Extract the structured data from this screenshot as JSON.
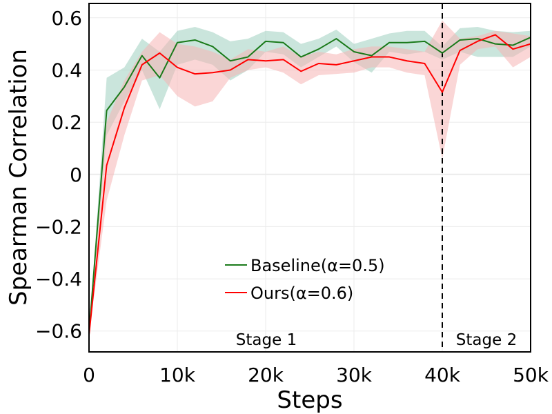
{
  "chart_data": {
    "type": "line",
    "title": "",
    "xlabel": "Steps",
    "ylabel": "Spearman Correlation",
    "xlim": [
      0,
      50000
    ],
    "ylim": [
      -0.68,
      0.655
    ],
    "grid": true,
    "legend_position": "center-bottom",
    "x_ticks": [
      {
        "value": 0,
        "label": "0"
      },
      {
        "value": 10000,
        "label": "10k"
      },
      {
        "value": 20000,
        "label": "20k"
      },
      {
        "value": 30000,
        "label": "30k"
      },
      {
        "value": 40000,
        "label": "40k"
      },
      {
        "value": 50000,
        "label": "50k"
      }
    ],
    "y_ticks": [
      {
        "value": -0.6,
        "label": "−0.6"
      },
      {
        "value": -0.4,
        "label": "−0.4"
      },
      {
        "value": -0.2,
        "label": "−0.2"
      },
      {
        "value": 0,
        "label": "0"
      },
      {
        "value": 0.2,
        "label": "0.2"
      },
      {
        "value": 0.4,
        "label": "0.4"
      },
      {
        "value": 0.6,
        "label": "0.6"
      }
    ],
    "x": [
      0,
      2000,
      4000,
      6000,
      8000,
      10000,
      12000,
      14000,
      16000,
      18000,
      20000,
      22000,
      24000,
      26000,
      28000,
      30000,
      32000,
      34000,
      36000,
      38000,
      40000,
      42000,
      44000,
      46000,
      48000,
      50000
    ],
    "series": [
      {
        "name": "Baseline(α=0.5)",
        "color": "#1a7a1a",
        "band_color": "#9fcfbf",
        "values": [
          -0.61,
          0.245,
          0.335,
          0.455,
          0.37,
          0.505,
          0.515,
          0.49,
          0.435,
          0.45,
          0.51,
          0.505,
          0.45,
          0.48,
          0.52,
          0.47,
          0.455,
          0.505,
          0.505,
          0.51,
          0.465,
          0.515,
          0.52,
          0.5,
          0.495,
          0.525
        ],
        "lower": [
          -0.61,
          0.15,
          0.28,
          0.4,
          0.25,
          0.42,
          0.44,
          0.42,
          0.36,
          0.4,
          0.47,
          0.46,
          0.41,
          0.45,
          0.49,
          0.43,
          0.39,
          0.47,
          0.46,
          0.47,
          0.44,
          0.47,
          0.45,
          0.45,
          0.45,
          0.49
        ],
        "upper": [
          -0.61,
          0.37,
          0.41,
          0.52,
          0.47,
          0.55,
          0.565,
          0.545,
          0.51,
          0.52,
          0.55,
          0.545,
          0.5,
          0.52,
          0.555,
          0.5,
          0.52,
          0.54,
          0.55,
          0.55,
          0.49,
          0.56,
          0.565,
          0.55,
          0.545,
          0.55
        ]
      },
      {
        "name": "Ours(α=0.6)",
        "color": "#ff0000",
        "band_color": "#f5b5b5",
        "values": [
          -0.615,
          0.035,
          0.255,
          0.42,
          0.465,
          0.41,
          0.385,
          0.39,
          0.4,
          0.44,
          0.435,
          0.44,
          0.395,
          0.425,
          0.42,
          0.435,
          0.45,
          0.45,
          0.435,
          0.425,
          0.315,
          0.475,
          0.51,
          0.535,
          0.48,
          0.5
        ],
        "lower": [
          -0.615,
          -0.1,
          0.15,
          0.36,
          0.38,
          0.3,
          0.26,
          0.28,
          0.37,
          0.4,
          0.41,
          0.39,
          0.345,
          0.38,
          0.385,
          0.39,
          0.41,
          0.41,
          0.39,
          0.38,
          0.06,
          0.42,
          0.48,
          0.49,
          0.41,
          0.45
        ],
        "upper": [
          -0.615,
          0.2,
          0.36,
          0.47,
          0.545,
          0.5,
          0.49,
          0.47,
          0.44,
          0.48,
          0.47,
          0.49,
          0.45,
          0.47,
          0.46,
          0.48,
          0.49,
          0.49,
          0.48,
          0.47,
          0.59,
          0.52,
          0.53,
          0.55,
          0.54,
          0.53
        ]
      }
    ],
    "vline": {
      "x": 40000,
      "style": "dashed"
    },
    "annotations": [
      {
        "text": "Stage 1",
        "x": 20000
      },
      {
        "text": "Stage 2",
        "x": 45000
      }
    ]
  }
}
